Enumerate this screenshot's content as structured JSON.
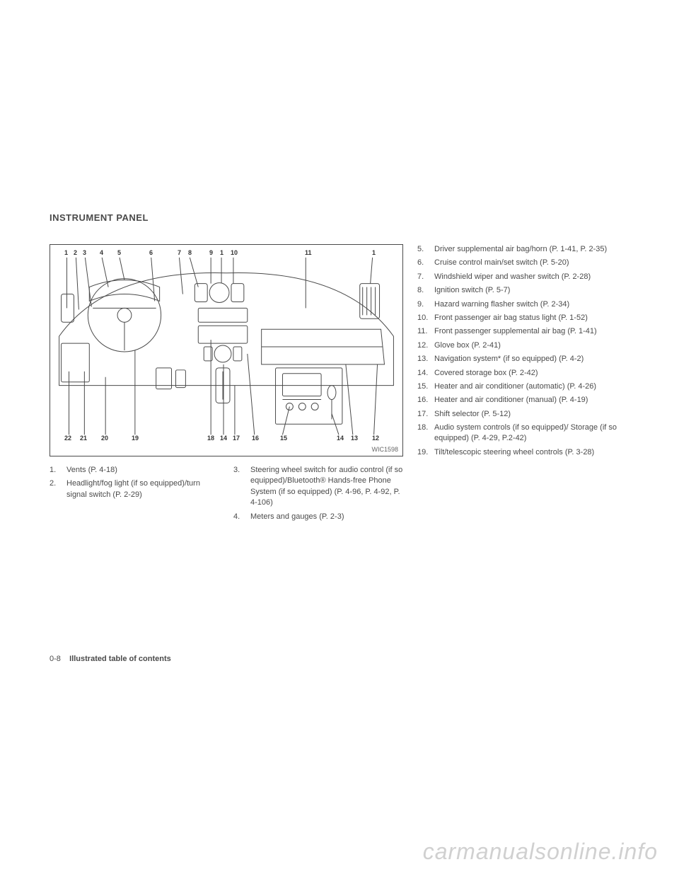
{
  "section_title": "INSTRUMENT PANEL",
  "diagram": {
    "label": "WIC1598",
    "callout_top": [
      "1",
      "2",
      "3",
      "4",
      "5",
      "6",
      "7",
      "8",
      "9",
      "1",
      "10",
      "11",
      "1"
    ],
    "callout_bottom": [
      "22",
      "21",
      "20",
      "19",
      "18",
      "14",
      "17",
      "16",
      "15",
      "14",
      "13",
      "12"
    ]
  },
  "legend_left_col1": [
    {
      "n": "1.",
      "t": "Vents (P. 4-18)"
    },
    {
      "n": "2.",
      "t": "Headlight/fog light (if so equipped)/turn signal switch (P. 2-29)"
    }
  ],
  "legend_left_col2": [
    {
      "n": "3.",
      "t": "Steering wheel switch for audio control (if so equipped)/Bluetooth® Hands-free Phone System (if so equipped) (P. 4-96, P. 4-92, P. 4-106)"
    },
    {
      "n": "4.",
      "t": "Meters and gauges (P. 2-3)"
    }
  ],
  "legend_right": [
    {
      "n": "5.",
      "t": "Driver supplemental air bag/horn (P. 1-41, P. 2-35)"
    },
    {
      "n": "6.",
      "t": "Cruise control main/set switch (P. 5-20)"
    },
    {
      "n": "7.",
      "t": "Windshield wiper and washer switch (P. 2-28)"
    },
    {
      "n": "8.",
      "t": "Ignition switch (P. 5-7)"
    },
    {
      "n": "9.",
      "t": "Hazard warning flasher switch (P. 2-34)"
    },
    {
      "n": "10.",
      "t": "Front passenger air bag status light (P. 1-52)"
    },
    {
      "n": "11.",
      "t": "Front passenger supplemental air bag (P. 1-41)"
    },
    {
      "n": "12.",
      "t": "Glove box (P. 2-41)"
    },
    {
      "n": "13.",
      "t": "Navigation system* (if so equipped) (P. 4-2)"
    },
    {
      "n": "14.",
      "t": "Covered storage box (P. 2-42)"
    },
    {
      "n": "15.",
      "t": "Heater and air conditioner (automatic) (P. 4-26)"
    },
    {
      "n": "16.",
      "t": "Heater and air conditioner (manual) (P. 4-19)"
    },
    {
      "n": "17.",
      "t": "Shift selector (P. 5-12)"
    },
    {
      "n": "18.",
      "t": "Audio system controls (if so equipped)/ Storage (if so equipped) (P. 4-29, P.2-42)"
    },
    {
      "n": "19.",
      "t": "Tilt/telescopic steering wheel controls (P. 3-28)"
    }
  ],
  "footer": {
    "page": "0-8",
    "section": "Illustrated table of contents"
  },
  "watermark": "carmanualsonline.info"
}
